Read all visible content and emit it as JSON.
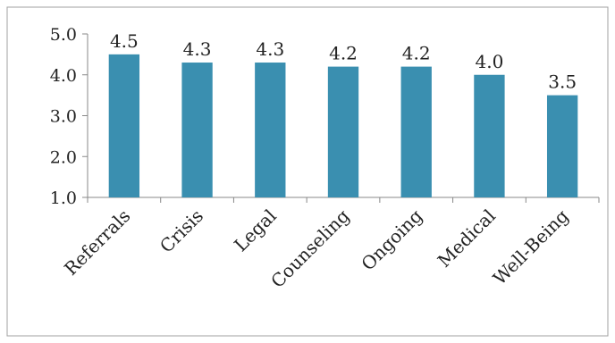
{
  "chart_data": {
    "type": "bar",
    "categories": [
      "Referrals",
      "Crisis",
      "Legal",
      "Counseling",
      "Ongoing",
      "Medical",
      "Well-Being"
    ],
    "values": [
      4.5,
      4.3,
      4.3,
      4.2,
      4.2,
      4.0,
      3.5
    ],
    "data_labels": [
      "4.5",
      "4.3",
      "4.3",
      "4.2",
      "4.2",
      "4.0",
      "3.5"
    ],
    "yticks": [
      "1.0",
      "2.0",
      "3.0",
      "4.0",
      "5.0"
    ],
    "ylim": [
      1.0,
      5.0
    ],
    "grid": false,
    "bar_color": "#3a8fb0",
    "axis_color": "#888888",
    "border_color": "#a0a0a0"
  }
}
